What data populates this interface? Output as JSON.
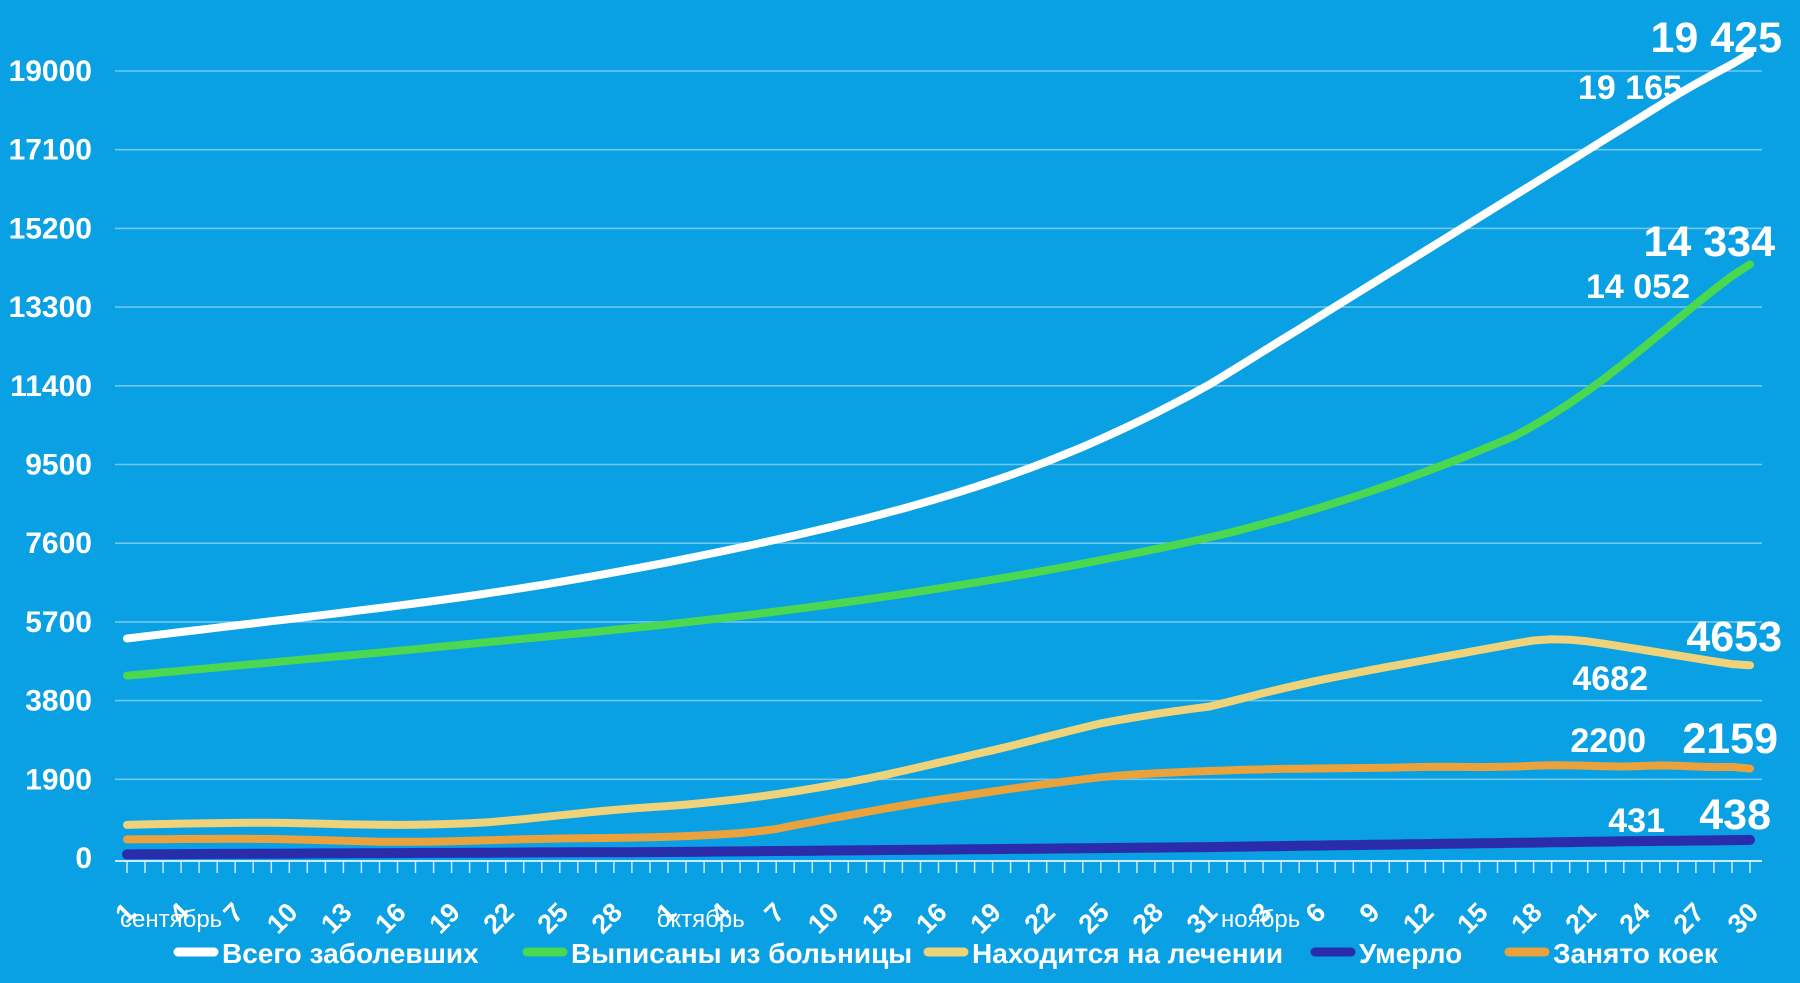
{
  "chart_data": {
    "type": "line",
    "title": "",
    "grid": true,
    "legend_position": "bottom",
    "colors": {
      "background": "#09A0E4"
    },
    "y_ticks": [
      0,
      1900,
      3800,
      5700,
      7600,
      9500,
      11400,
      13300,
      15200,
      17100,
      19000
    ],
    "ylim": [
      0,
      19900
    ],
    "n_points": 91,
    "months": [
      {
        "label": "сентябрь",
        "days": 30,
        "tick_days": [
          1,
          4,
          7,
          10,
          13,
          16,
          19,
          22,
          25,
          28
        ]
      },
      {
        "label": "октябрь",
        "days": 31,
        "tick_days": [
          1,
          4,
          7,
          10,
          13,
          16,
          19,
          22,
          25,
          28,
          31
        ]
      },
      {
        "label": "ноябрь",
        "days": 30,
        "tick_days": [
          3,
          6,
          9,
          12,
          15,
          18,
          21,
          24,
          27,
          30
        ]
      }
    ],
    "series": [
      {
        "name": "Всего заболевших",
        "color": "#FFFFFF",
        "labels": {
          "prev": "19 165",
          "curr": "19 425"
        },
        "values": [
          5300,
          5352,
          5404,
          5456,
          5508,
          5560,
          5612,
          5664,
          5716,
          5768,
          5820,
          5874,
          5928,
          5982,
          6036,
          6090,
          6146,
          6204,
          6264,
          6326,
          6390,
          6456,
          6524,
          6594,
          6666,
          6740,
          6816,
          6894,
          6974,
          7056,
          7140,
          7226,
          7314,
          7404,
          7496,
          7590,
          7686,
          7784,
          7884,
          7986,
          8092,
          8202,
          8316,
          8434,
          8556,
          8682,
          8814,
          8952,
          9096,
          9246,
          9404,
          9570,
          9744,
          9926,
          10116,
          10314,
          10520,
          10734,
          10956,
          11186,
          11424,
          11690,
          11960,
          12230,
          12500,
          12770,
          13040,
          13310,
          13580,
          13850,
          14120,
          14390,
          14660,
          14930,
          15200,
          15470,
          15740,
          16010,
          16280,
          16550,
          16820,
          17090,
          17360,
          17630,
          17900,
          18170,
          18440,
          18690,
          18930,
          19165,
          19425
        ]
      },
      {
        "name": "Выписаны из больницы",
        "color": "#4BD851",
        "labels": {
          "prev": "14 052",
          "curr": "14 334"
        },
        "values": [
          4400,
          4440,
          4480,
          4520,
          4560,
          4600,
          4640,
          4680,
          4720,
          4760,
          4800,
          4840,
          4880,
          4920,
          4960,
          5000,
          5042,
          5084,
          5126,
          5168,
          5210,
          5252,
          5294,
          5336,
          5378,
          5420,
          5462,
          5506,
          5550,
          5596,
          5642,
          5690,
          5740,
          5790,
          5842,
          5896,
          5950,
          6006,
          6064,
          6122,
          6182,
          6244,
          6308,
          6372,
          6438,
          6506,
          6576,
          6646,
          6718,
          6792,
          6868,
          6946,
          7026,
          7108,
          7192,
          7278,
          7366,
          7456,
          7548,
          7642,
          7738,
          7840,
          7950,
          8065,
          8185,
          8310,
          8440,
          8575,
          8715,
          8860,
          9010,
          9165,
          9325,
          9490,
          9660,
          9835,
          10015,
          10200,
          10440,
          10700,
          10980,
          11280,
          11600,
          11940,
          12290,
          12650,
          13010,
          13370,
          13720,
          14052,
          14334
        ]
      },
      {
        "name": "Находится на лечении",
        "color": "#EFD37B",
        "labels": {
          "prev": "4682",
          "curr": "4653"
        },
        "values": [
          800,
          812,
          822,
          830,
          836,
          842,
          848,
          852,
          850,
          844,
          836,
          826,
          816,
          808,
          802,
          800,
          804,
          812,
          824,
          840,
          862,
          900,
          940,
          985,
          1030,
          1075,
          1120,
          1160,
          1195,
          1225,
          1255,
          1290,
          1330,
          1375,
          1425,
          1480,
          1540,
          1605,
          1675,
          1750,
          1830,
          1915,
          2005,
          2100,
          2200,
          2300,
          2400,
          2500,
          2600,
          2705,
          2815,
          2925,
          3035,
          3145,
          3250,
          3330,
          3405,
          3475,
          3540,
          3600,
          3655,
          3760,
          3870,
          3980,
          4085,
          4185,
          4280,
          4370,
          4455,
          4540,
          4620,
          4700,
          4780,
          4860,
          4940,
          5020,
          5100,
          5180,
          5250,
          5280,
          5270,
          5230,
          5170,
          5100,
          5030,
          4960,
          4890,
          4820,
          4750,
          4682,
          4653
        ]
      },
      {
        "name": "Умерло",
        "color": "#2A2CAC",
        "labels": {
          "prev": "431",
          "curr": "438"
        },
        "values": [
          88,
          90,
          92,
          94,
          96,
          98,
          100,
          102,
          104,
          106,
          108,
          110,
          112,
          114,
          116,
          118,
          120,
          122,
          124,
          126,
          128,
          130,
          132,
          134,
          136,
          138,
          139,
          140,
          141,
          142,
          144,
          148,
          152,
          156,
          160,
          164,
          168,
          172,
          176,
          180,
          184,
          188,
          192,
          196,
          200,
          204,
          208,
          212,
          216,
          220,
          224,
          228,
          232,
          236,
          240,
          244,
          248,
          252,
          256,
          260,
          264,
          270,
          276,
          282,
          288,
          294,
          300,
          306,
          312,
          318,
          324,
          330,
          336,
          342,
          348,
          354,
          360,
          366,
          372,
          378,
          384,
          390,
          396,
          402,
          408,
          413,
          418,
          422,
          426,
          431,
          438
        ]
      },
      {
        "name": "Занято коек",
        "color": "#E9A23C",
        "labels": {
          "prev": "2200",
          "curr": "2159"
        },
        "values": [
          450,
          452,
          455,
          458,
          460,
          462,
          463,
          462,
          458,
          450,
          440,
          428,
          415,
          403,
          394,
          390,
          391,
          396,
          404,
          415,
          428,
          441,
          452,
          462,
          470,
          476,
          481,
          486,
          492,
          500,
          512,
          528,
          548,
          572,
          600,
          645,
          700,
          790,
          870,
          950,
          1030,
          1110,
          1190,
          1265,
          1340,
          1410,
          1475,
          1540,
          1605,
          1670,
          1730,
          1790,
          1845,
          1900,
          1950,
          1990,
          2020,
          2045,
          2065,
          2085,
          2100,
          2115,
          2130,
          2140,
          2150,
          2155,
          2160,
          2165,
          2170,
          2175,
          2180,
          2190,
          2200,
          2205,
          2200,
          2195,
          2200,
          2210,
          2225,
          2240,
          2235,
          2225,
          2215,
          2210,
          2220,
          2235,
          2225,
          2210,
          2195,
          2200,
          2159
        ]
      }
    ]
  }
}
